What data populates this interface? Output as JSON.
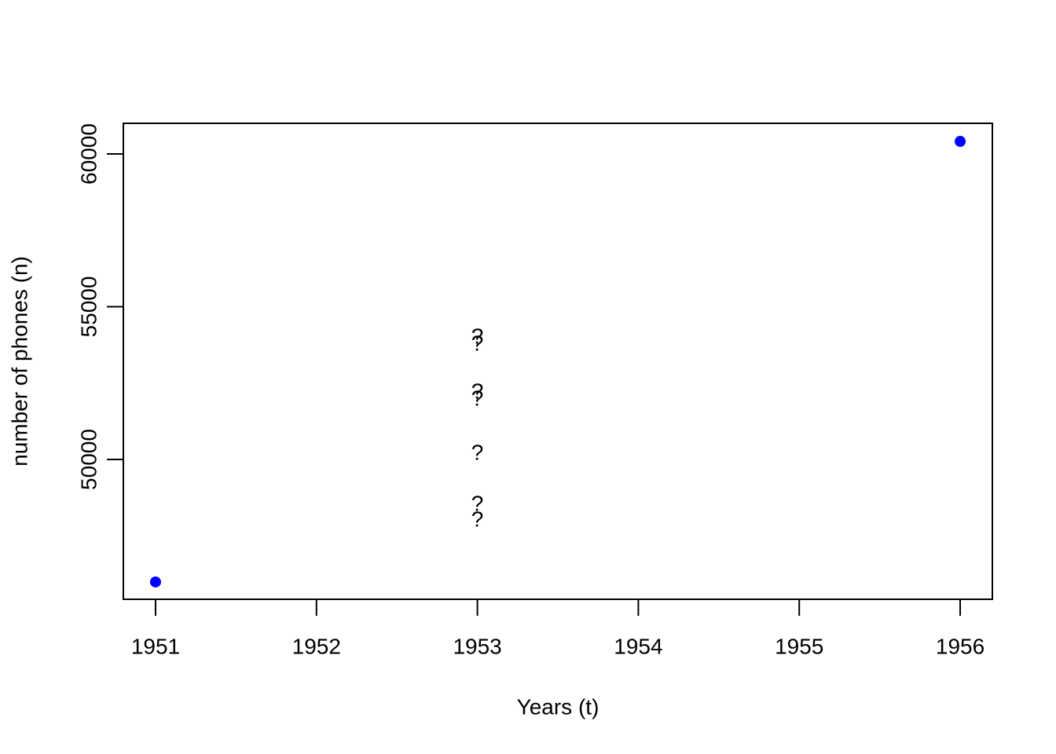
{
  "chart_data": {
    "type": "scatter",
    "x_label": "Years (t)",
    "y_label": "number of phones (n)",
    "xlim": [
      1950.8,
      1956.2
    ],
    "ylim": [
      45424,
      61003
    ],
    "xticks": [
      1951,
      1952,
      1953,
      1954,
      1955,
      1956
    ],
    "yticks": [
      50000,
      55000,
      60000
    ],
    "points": {
      "x": [
        1951,
        1956
      ],
      "y": [
        45990,
        60411
      ],
      "color": "#0000ff"
    },
    "text_points": {
      "x": [
        1953,
        1953,
        1953,
        1953,
        1953,
        1953,
        1953
      ],
      "y": [
        54036,
        53805,
        52237,
        52005,
        50231,
        48560,
        48046
      ],
      "text": [
        "?",
        "?",
        "?",
        "?",
        "?",
        "?",
        "?"
      ],
      "color": "#000000"
    }
  }
}
